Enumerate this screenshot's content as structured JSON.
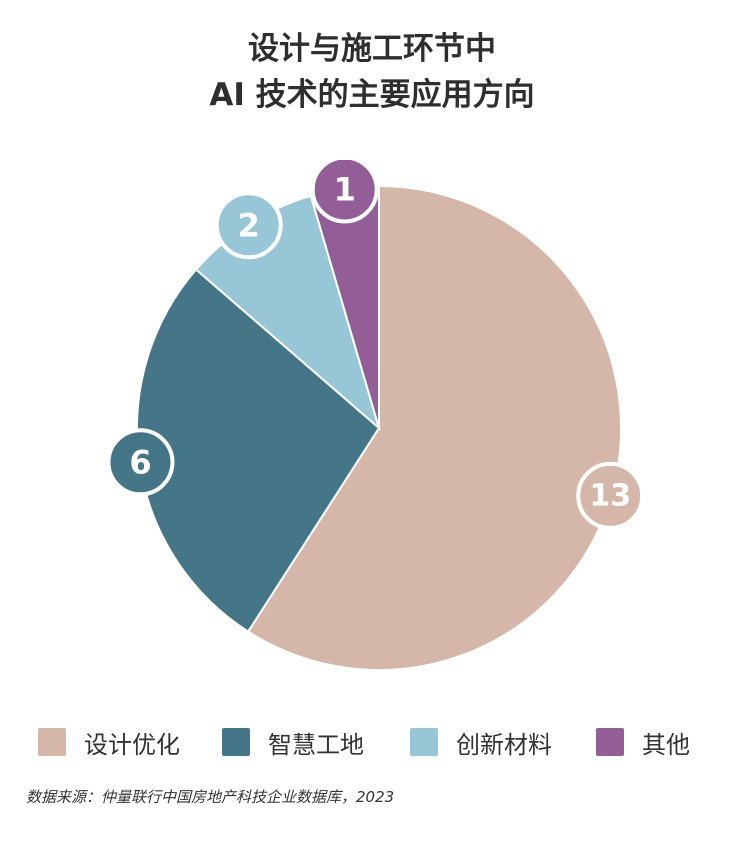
{
  "title_lines": [
    "设计与施工环节中",
    "AI 技术的主要应用方向"
  ],
  "chart_data": {
    "type": "pie",
    "title": "设计与施工环节中 AI 技术的主要应用方向",
    "slices": [
      {
        "label": "设计优化",
        "value": 13,
        "color": "#d4b7a8"
      },
      {
        "label": "智慧工地",
        "value": 6,
        "color": "#457688"
      },
      {
        "label": "创新材料",
        "value": 2,
        "color": "#97c6d6"
      },
      {
        "label": "其他",
        "value": 1,
        "color": "#935e98"
      }
    ],
    "start": "12 o'clock",
    "direction": "clockwise",
    "legend_position": "bottom"
  },
  "source": "数据来源：仲量联行中国房地产科技企业数据库，2023"
}
